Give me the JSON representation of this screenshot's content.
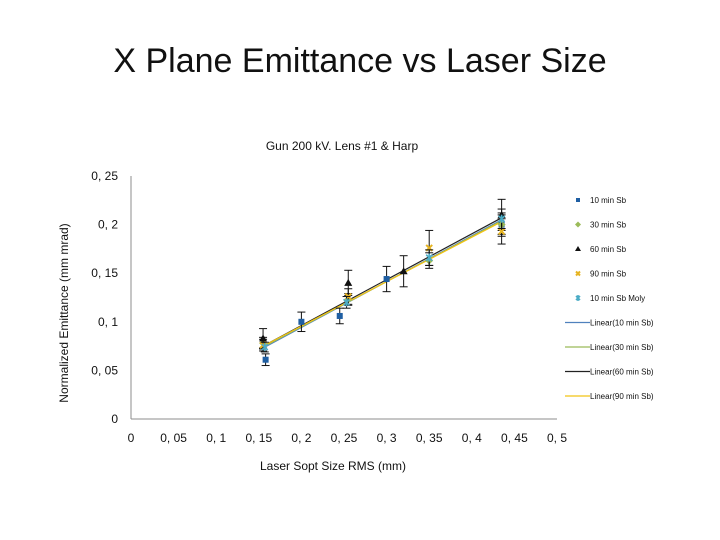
{
  "slide": {
    "title": "X Plane Emittance vs Laser Size"
  },
  "chart_data": {
    "type": "scatter",
    "title": "Gun 200 kV. Lens #1 & Harp",
    "xlabel": "Laser Sopt Size RMS (mm)",
    "ylabel": "Normalized Emittance (mm mrad)",
    "xlim": [
      0,
      0.5
    ],
    "ylim": [
      0,
      0.25
    ],
    "xticks": [
      0,
      0.05,
      0.1,
      0.15,
      0.2,
      0.25,
      0.3,
      0.35,
      0.4,
      0.45,
      0.5
    ],
    "xtick_labels": [
      "0",
      "0, 05",
      "0, 1",
      "0, 15",
      "0, 2",
      "0, 25",
      "0, 3",
      "0, 35",
      "0, 4",
      "0, 45",
      "0, 5"
    ],
    "yticks": [
      0,
      0.05,
      0.1,
      0.15,
      0.2,
      0.25
    ],
    "ytick_labels": [
      "0",
      "0, 05",
      "0, 1",
      "0, 15",
      "0, 2",
      "0, 25"
    ],
    "grid": false,
    "legend_position": "right",
    "series": [
      {
        "name": "10 min Sb",
        "marker": "square",
        "color": "#1f5fa3",
        "points": [
          {
            "x": 0.158,
            "y": 0.061,
            "err": 0.006
          },
          {
            "x": 0.2,
            "y": 0.1,
            "err": 0.01
          },
          {
            "x": 0.245,
            "y": 0.106,
            "err": 0.008
          },
          {
            "x": 0.3,
            "y": 0.144,
            "err": 0.013
          },
          {
            "x": 0.435,
            "y": 0.2,
            "err": 0.012
          }
        ]
      },
      {
        "name": "30 min Sb",
        "marker": "diamond",
        "color": "#9bbb59",
        "points": [
          {
            "x": 0.155,
            "y": 0.078,
            "err": 0.006
          },
          {
            "x": 0.255,
            "y": 0.123,
            "err": 0.006
          },
          {
            "x": 0.35,
            "y": 0.163,
            "err": 0.008
          },
          {
            "x": 0.435,
            "y": 0.2,
            "err": 0.01
          }
        ]
      },
      {
        "name": "60 min Sb",
        "marker": "triangle",
        "color": "#111111",
        "points": [
          {
            "x": 0.155,
            "y": 0.083,
            "err": 0.01
          },
          {
            "x": 0.255,
            "y": 0.14,
            "err": 0.013
          },
          {
            "x": 0.32,
            "y": 0.152,
            "err": 0.016
          },
          {
            "x": 0.435,
            "y": 0.21,
            "err": 0.016
          }
        ]
      },
      {
        "name": "90 min Sb",
        "marker": "x",
        "color": "#e6b422",
        "points": [
          {
            "x": 0.155,
            "y": 0.076,
            "err": 0.006
          },
          {
            "x": 0.255,
            "y": 0.126,
            "err": 0.008
          },
          {
            "x": 0.35,
            "y": 0.176,
            "err": 0.018
          },
          {
            "x": 0.435,
            "y": 0.193,
            "err": 0.013
          }
        ]
      },
      {
        "name": "10 min Sb Moly",
        "marker": "star",
        "color": "#4bacc6",
        "points": [
          {
            "x": 0.157,
            "y": 0.074,
            "err": 0.005
          },
          {
            "x": 0.253,
            "y": 0.12,
            "err": 0.006
          },
          {
            "x": 0.35,
            "y": 0.166,
            "err": 0.008
          },
          {
            "x": 0.435,
            "y": 0.206,
            "err": 0.01
          }
        ]
      }
    ],
    "trendlines": [
      {
        "name": "Linear(10 min Sb)",
        "color": "#4f81bd",
        "x_start": 0.155,
        "x_end": 0.435,
        "y_start": 0.073,
        "y_end": 0.205
      },
      {
        "name": "Linear(30 min Sb)",
        "color": "#9bbb59",
        "x_start": 0.155,
        "x_end": 0.435,
        "y_start": 0.074,
        "y_end": 0.204
      },
      {
        "name": "Linear(60 min Sb)",
        "color": "#222222",
        "x_start": 0.155,
        "x_end": 0.435,
        "y_start": 0.075,
        "y_end": 0.207
      },
      {
        "name": "Linear(90 min Sb)",
        "color": "#f2c314",
        "x_start": 0.155,
        "x_end": 0.435,
        "y_start": 0.075,
        "y_end": 0.203
      }
    ]
  }
}
